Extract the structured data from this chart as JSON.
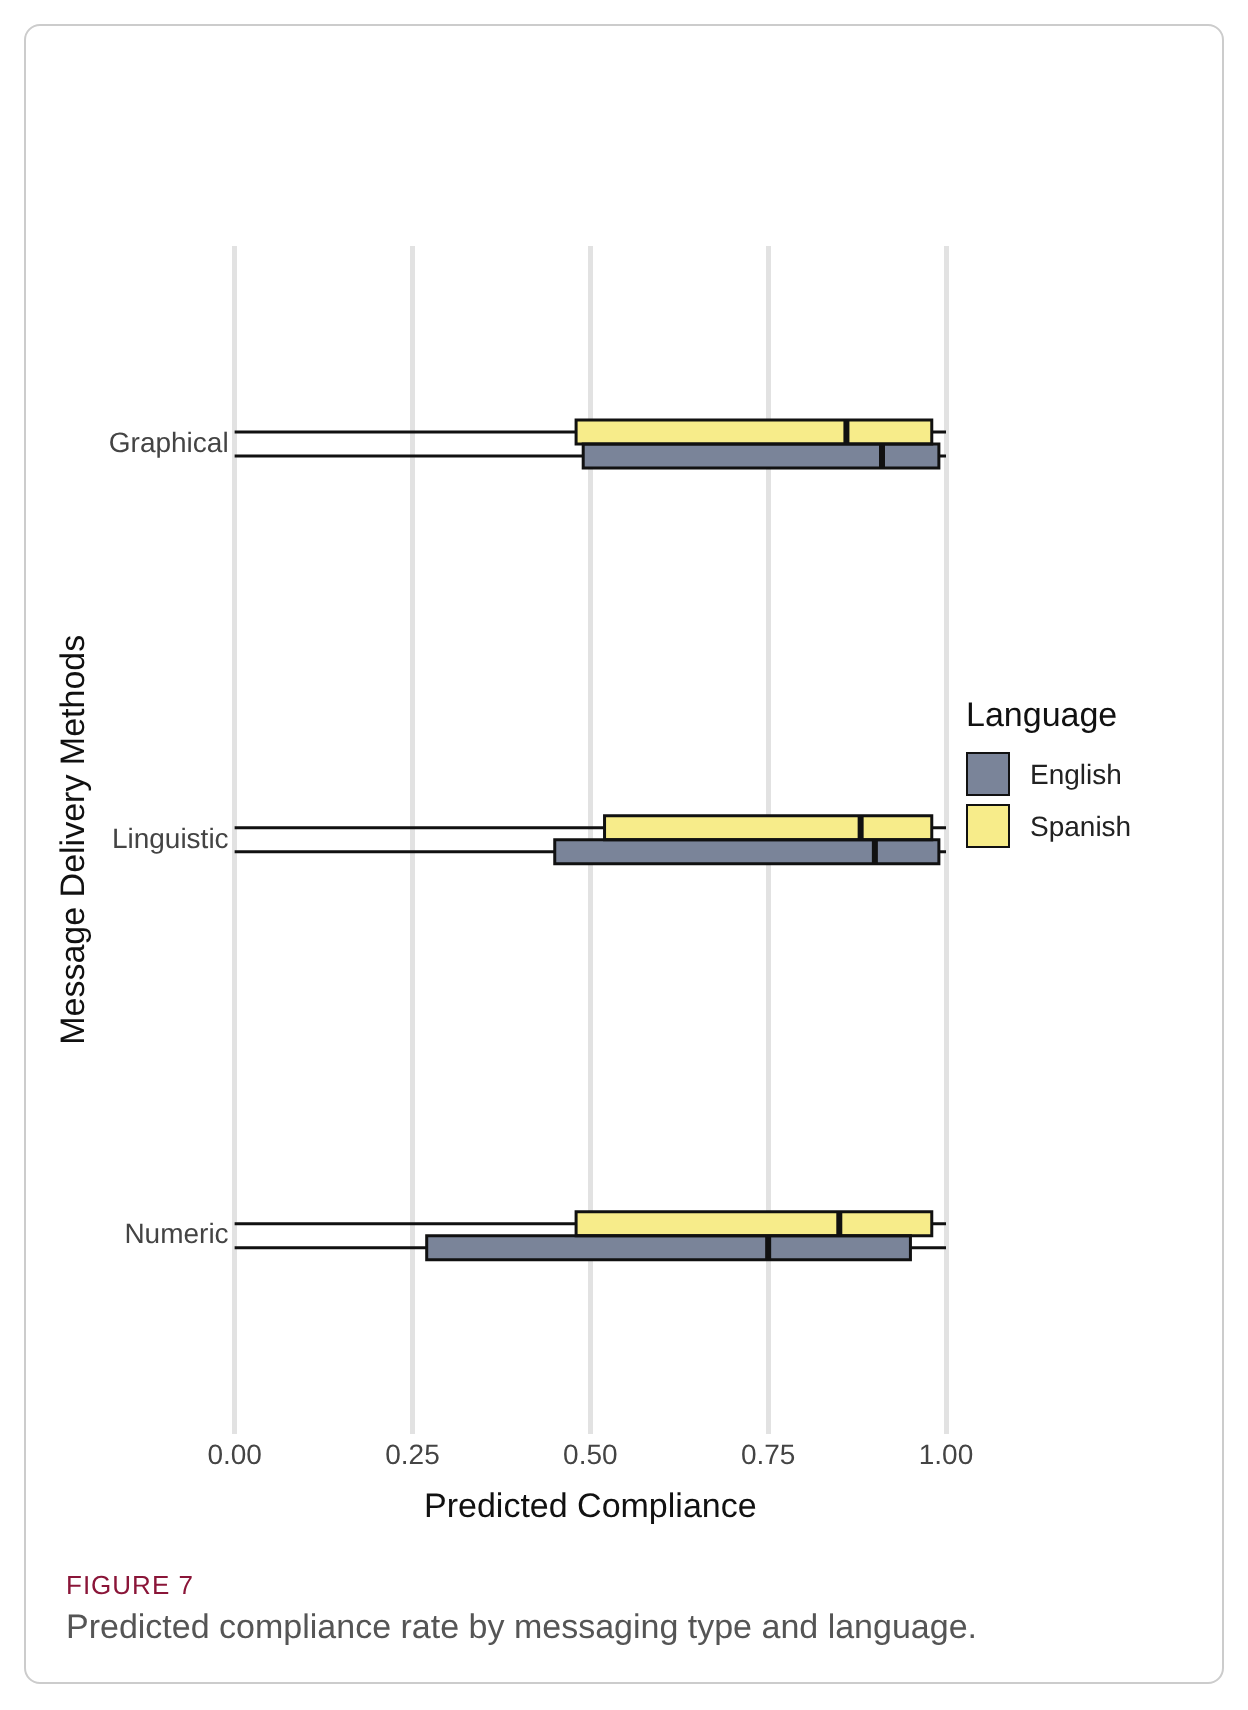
{
  "chart_data": {
    "type": "box",
    "orientation": "horizontal",
    "xlabel": "Predicted Compliance",
    "ylabel": "Message Delivery Methods",
    "legend_title": "Language",
    "legend": "right",
    "grid": "x",
    "categories": [
      "Graphical",
      "Linguistic",
      "Numeric"
    ],
    "xlim": [
      0,
      1
    ],
    "xticks": [
      {
        "value": 0,
        "label": "0.00"
      },
      {
        "value": 0.25,
        "label": "0.25"
      },
      {
        "value": 0.5,
        "label": "0.50"
      },
      {
        "value": 0.75,
        "label": "0.75"
      },
      {
        "value": 1,
        "label": "1.00"
      }
    ],
    "series": [
      {
        "name": "English",
        "color": "#7a8499",
        "boxes": [
          {
            "low": 0,
            "q1": 0.49,
            "median": 0.91,
            "q3": 0.99,
            "high": 1
          },
          {
            "low": 0,
            "q1": 0.45,
            "median": 0.9,
            "q3": 0.99,
            "high": 1
          },
          {
            "low": 0,
            "q1": 0.27,
            "median": 0.75,
            "q3": 0.95,
            "high": 1
          }
        ]
      },
      {
        "name": "Spanish",
        "color": "#f7ec8a",
        "boxes": [
          {
            "low": 0,
            "q1": 0.48,
            "median": 0.86,
            "q3": 0.98,
            "high": 1
          },
          {
            "low": 0,
            "q1": 0.52,
            "median": 0.88,
            "q3": 0.98,
            "high": 1
          },
          {
            "low": 0,
            "q1": 0.48,
            "median": 0.85,
            "q3": 0.98,
            "high": 1
          }
        ]
      }
    ],
    "annotations": [
      "FIGURE 7",
      "Predicted compliance rate by messaging type and language."
    ]
  }
}
